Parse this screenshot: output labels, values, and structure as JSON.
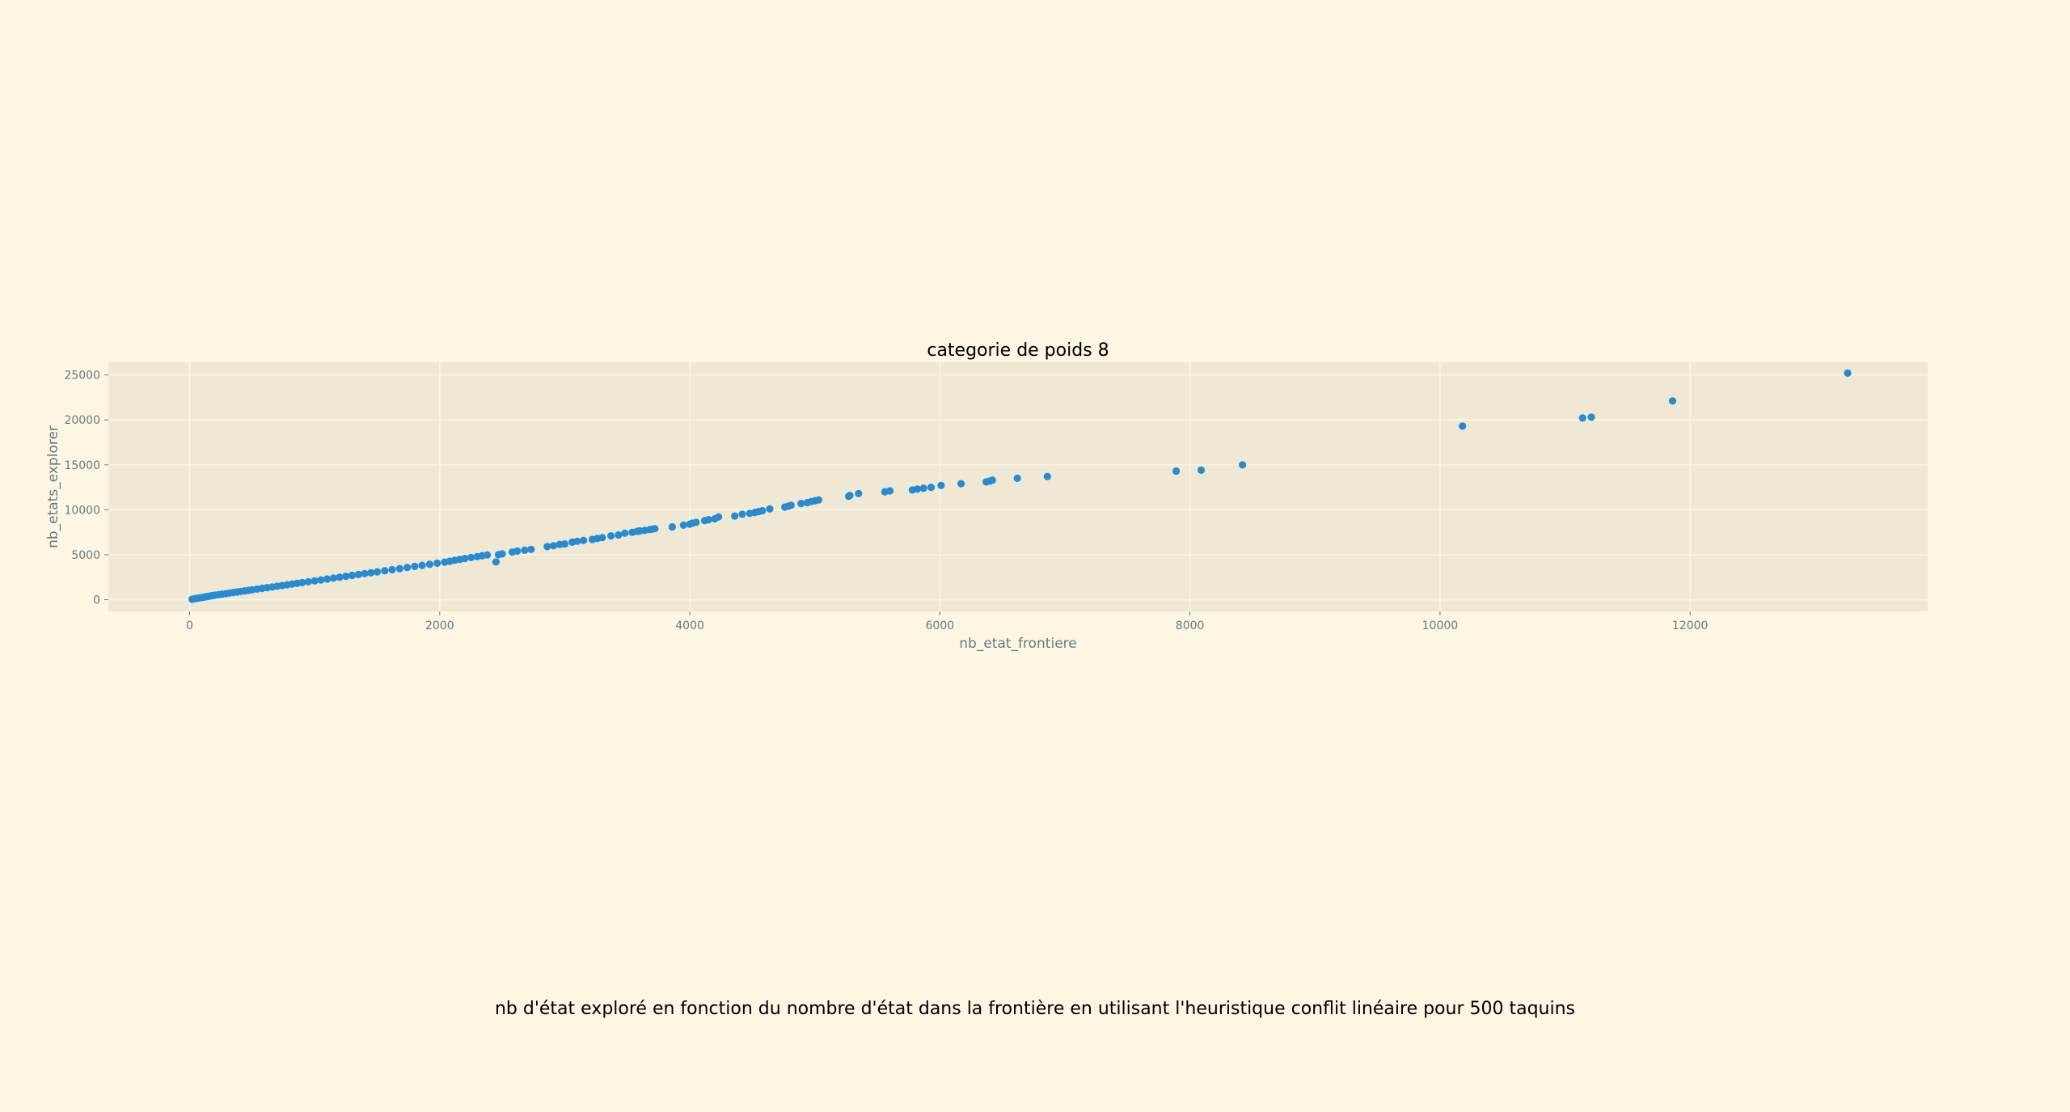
{
  "figure": {
    "caption": "nb d'état exploré en fonction du nombre d'état dans la frontière en utilisant l'heuristique conflit linéaire pour 500 taquins"
  },
  "colors": {
    "background": "#fdf6e3",
    "plot_area": "#eee8d5",
    "grid": "#fdf6e3",
    "point": "#268bd2",
    "text": "#657b83"
  },
  "chart_data": {
    "type": "scatter",
    "title": "categorie de poids 8",
    "xlabel": "nb_etat_frontiere",
    "ylabel": "nb_etats_explorer",
    "xlim": [
      -650,
      13900
    ],
    "ylim": [
      -1300,
      26400
    ],
    "x_ticks": [
      0,
      2000,
      4000,
      6000,
      8000,
      10000,
      12000
    ],
    "y_ticks": [
      0,
      5000,
      10000,
      15000,
      20000,
      25000
    ],
    "grid": true,
    "legend": "none",
    "series": [
      {
        "x": [
          20,
          40,
          60,
          80,
          100,
          120,
          140,
          160,
          180,
          200,
          230,
          260,
          290,
          320,
          350,
          380,
          410,
          440,
          470,
          500,
          540,
          580,
          620,
          660,
          700,
          740,
          780,
          820,
          860,
          900,
          950,
          1000,
          1050,
          1100,
          1150,
          1200,
          1250,
          1300,
          1350,
          1400,
          1450,
          1500,
          1560,
          1620,
          1680,
          1740,
          1800,
          1860,
          1920,
          1980,
          2040,
          2080,
          2120,
          2160,
          2200,
          2250,
          2300,
          2340,
          2380,
          2450,
          2470,
          2500,
          2580,
          2620,
          2680,
          2730,
          2860,
          2910,
          2960,
          3000,
          3060,
          3100,
          3150,
          3220,
          3260,
          3300,
          3370,
          3430,
          3480,
          3540,
          3580,
          3600,
          3640,
          3680,
          3700,
          3720,
          3860,
          3950,
          4000,
          4020,
          4050,
          4120,
          4150,
          4200,
          4230,
          4360,
          4420,
          4480,
          4520,
          4550,
          4580,
          4640,
          4760,
          4790,
          4810,
          4890,
          4940,
          4970,
          5000,
          5030,
          5270,
          5280,
          5350,
          5560,
          5600,
          5780,
          5820,
          5870,
          5930,
          6010,
          6170,
          6370,
          6400,
          6420,
          6620,
          6860,
          7890,
          8090,
          8420,
          10180,
          11140,
          11210,
          11860,
          13260
        ],
        "y": [
          50,
          100,
          150,
          200,
          250,
          300,
          350,
          400,
          450,
          500,
          560,
          620,
          680,
          740,
          800,
          860,
          920,
          980,
          1040,
          1100,
          1180,
          1260,
          1340,
          1420,
          1500,
          1580,
          1660,
          1740,
          1820,
          1900,
          2000,
          2100,
          2200,
          2300,
          2400,
          2500,
          2600,
          2700,
          2800,
          2900,
          3000,
          3100,
          3220,
          3340,
          3460,
          3580,
          3700,
          3820,
          3940,
          4060,
          4180,
          4280,
          4380,
          4480,
          4580,
          4700,
          4800,
          4900,
          4980,
          4200,
          5000,
          5100,
          5300,
          5400,
          5500,
          5600,
          5900,
          6000,
          6150,
          6200,
          6400,
          6500,
          6600,
          6700,
          6800,
          6900,
          7100,
          7200,
          7400,
          7500,
          7600,
          7650,
          7700,
          7800,
          7850,
          7900,
          8100,
          8300,
          8400,
          8500,
          8600,
          8800,
          8900,
          9000,
          9200,
          9300,
          9500,
          9600,
          9700,
          9800,
          9900,
          10100,
          10300,
          10400,
          10500,
          10700,
          10800,
          10900,
          11000,
          11100,
          11500,
          11600,
          11800,
          12000,
          12100,
          12200,
          12300,
          12400,
          12500,
          12700,
          12900,
          13100,
          13200,
          13300,
          13500,
          13700,
          14300,
          14400,
          15000,
          19300,
          20200,
          20300,
          22100,
          25200
        ]
      }
    ]
  }
}
